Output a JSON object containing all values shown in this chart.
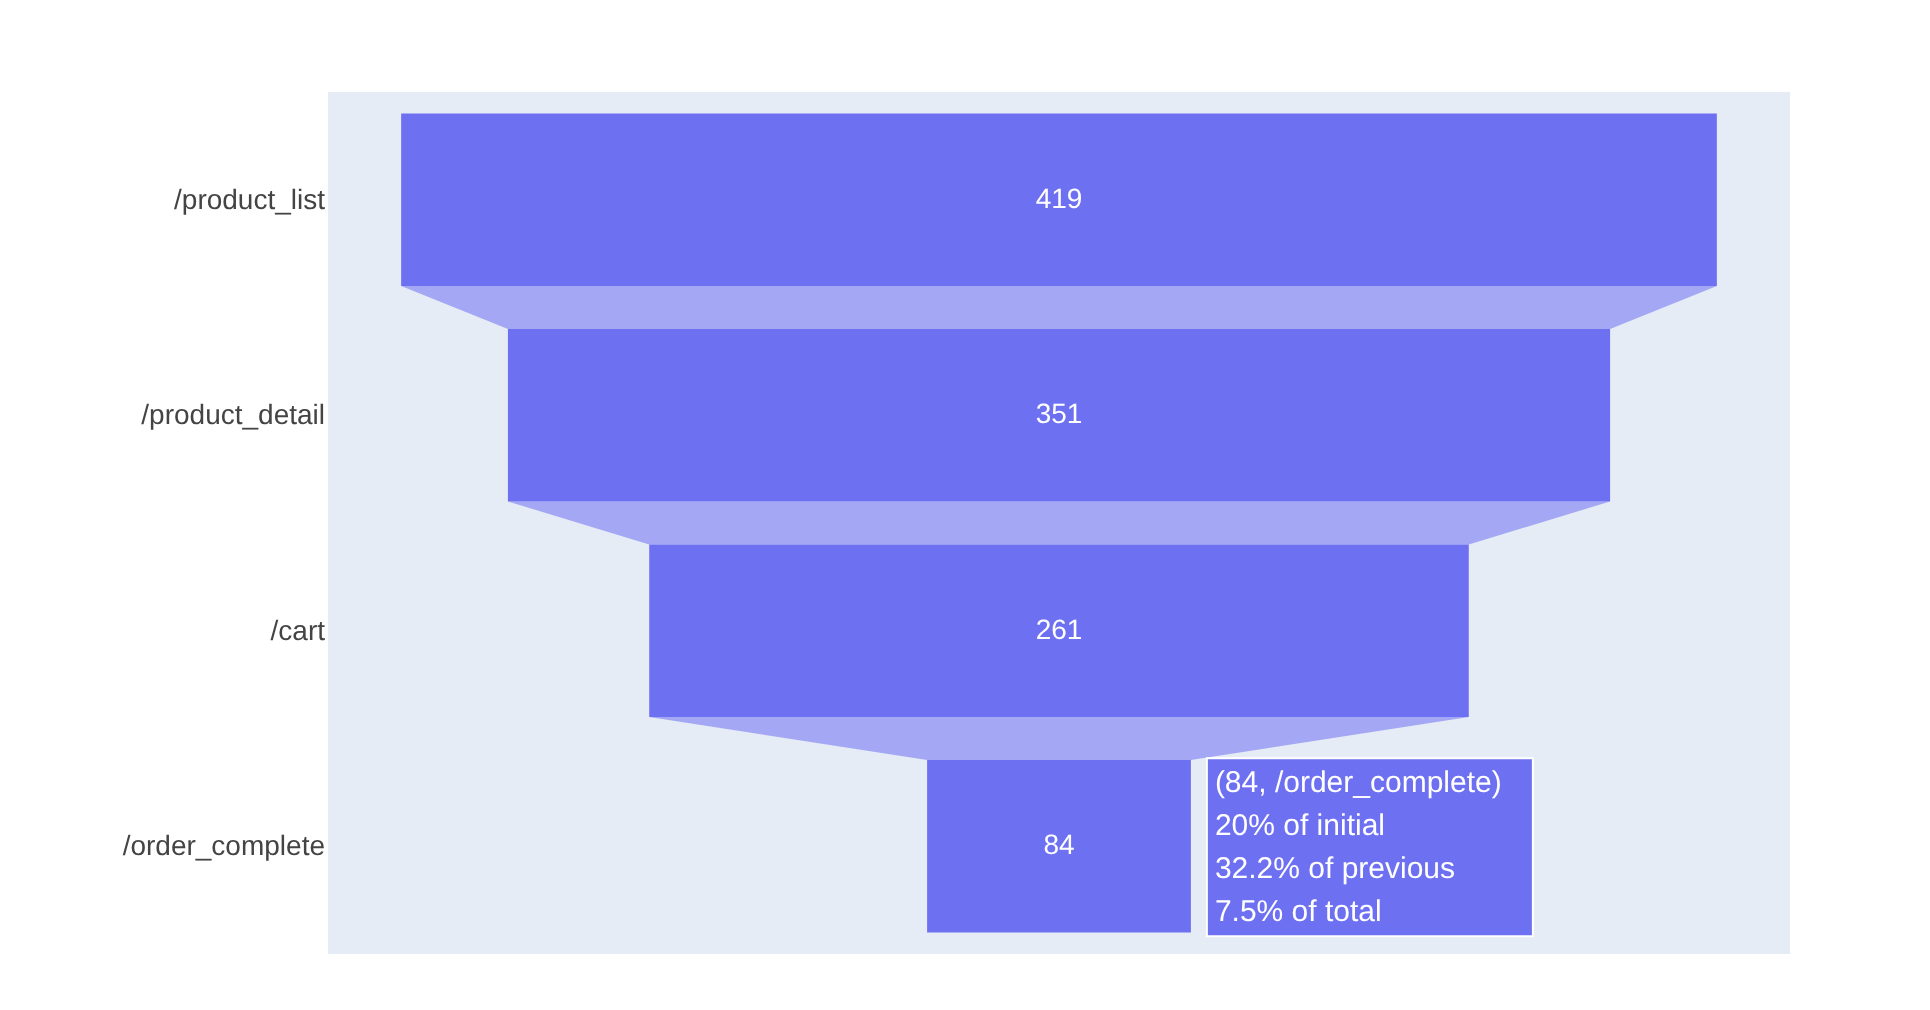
{
  "chart_data": {
    "type": "other",
    "categories": [
      "/product_list",
      "/product_detail",
      "/cart",
      "/order_complete"
    ],
    "values": [
      419,
      351,
      261,
      84
    ],
    "color": "#6e70f2",
    "data_labels": true,
    "annotations": [
      "(84, /order_complete)",
      "20% of initial",
      "32.2% of previous",
      "7.5% of total"
    ]
  }
}
